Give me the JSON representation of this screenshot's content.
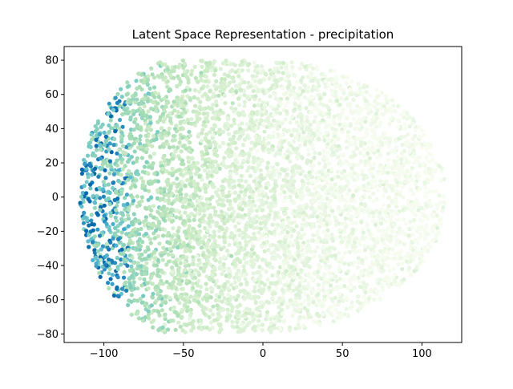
{
  "chart_data": {
    "type": "scatter",
    "title": "Latent Space Representation - precipitation",
    "xlabel": "",
    "ylabel": "",
    "xlim": [
      -125,
      125
    ],
    "ylim": [
      -85,
      88
    ],
    "x_ticks": [
      -100,
      -50,
      0,
      50,
      100
    ],
    "y_ticks": [
      -80,
      -60,
      -40,
      -20,
      0,
      20,
      40,
      60,
      80
    ],
    "x_tick_labels": [
      "−100",
      "−50",
      "0",
      "50",
      "100"
    ],
    "y_tick_labels": [
      "−80",
      "−60",
      "−40",
      "−20",
      "0",
      "20",
      "40",
      "60",
      "80"
    ],
    "grid": false,
    "legend": "none",
    "colormap": "GnBu",
    "colormap_colors": [
      "#f7fcf0",
      "#e0f3db",
      "#ccebc5",
      "#a8ddb5",
      "#7bccc4",
      "#4eb3d3",
      "#2b8cbe",
      "#0868ac"
    ],
    "cloud": {
      "x_range": [
        -115,
        115
      ],
      "y_range": [
        -79,
        80
      ],
      "shape": "ellipse with flattened left edge",
      "color_trend": "precipitation highest at far left (dark blue), decreasing to pale green at right"
    }
  }
}
